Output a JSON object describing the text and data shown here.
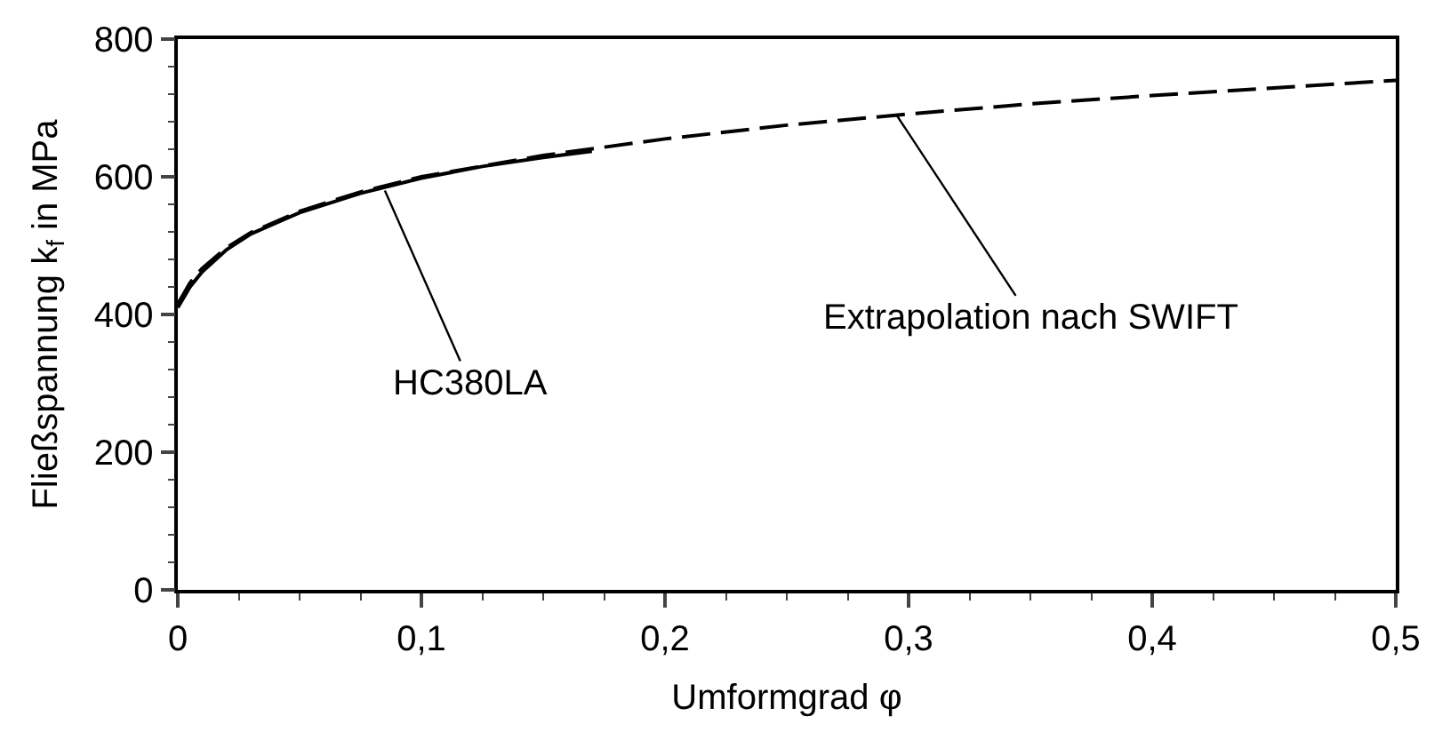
{
  "chart_data": {
    "type": "line",
    "xlabel": "Umformgrad φ",
    "ylabel": "Fließspannung k$_{f}$ in MPa",
    "series": [
      {
        "color": "#000000",
        "line_style": "solid",
        "x": [
          0,
          0.005,
          0.01,
          0.02,
          0.03,
          0.05,
          0.075,
          0.1,
          0.125,
          0.15,
          0.17
        ],
        "values": [
          410,
          440,
          462,
          494,
          517,
          548,
          576,
          598,
          615,
          628,
          637
        ]
      },
      {
        "color": "#000000",
        "line_style": "dashed",
        "x": [
          0,
          0.005,
          0.01,
          0.02,
          0.03,
          0.05,
          0.075,
          0.1,
          0.15,
          0.2,
          0.25,
          0.3,
          0.35,
          0.4,
          0.45,
          0.5
        ],
        "values": [
          415,
          446,
          467,
          497,
          519,
          550,
          578,
          600,
          631,
          655,
          675,
          691,
          706,
          718,
          729,
          740
        ]
      }
    ],
    "annotations": [
      {
        "text": "HC380LA",
        "x": 0.085,
        "y": 580
      },
      {
        "text": "Extrapolation nach SWIFT",
        "x": 0.295,
        "y": 690
      }
    ],
    "xlim": [
      0,
      0.5
    ],
    "xticks": [
      0,
      {
        "value": 0.1,
        "label": "0,1"
      },
      {
        "value": 0.2,
        "label": "0,2"
      },
      {
        "value": 0.3,
        "label": "0,3"
      },
      {
        "value": 0.4,
        "label": "0,4"
      },
      {
        "value": 0.5,
        "label": "0,5"
      }
    ],
    "ylim": [
      0,
      800
    ],
    "yticks": [
      0,
      200,
      400,
      600,
      800
    ],
    "legend": false,
    "marker": "none"
  }
}
